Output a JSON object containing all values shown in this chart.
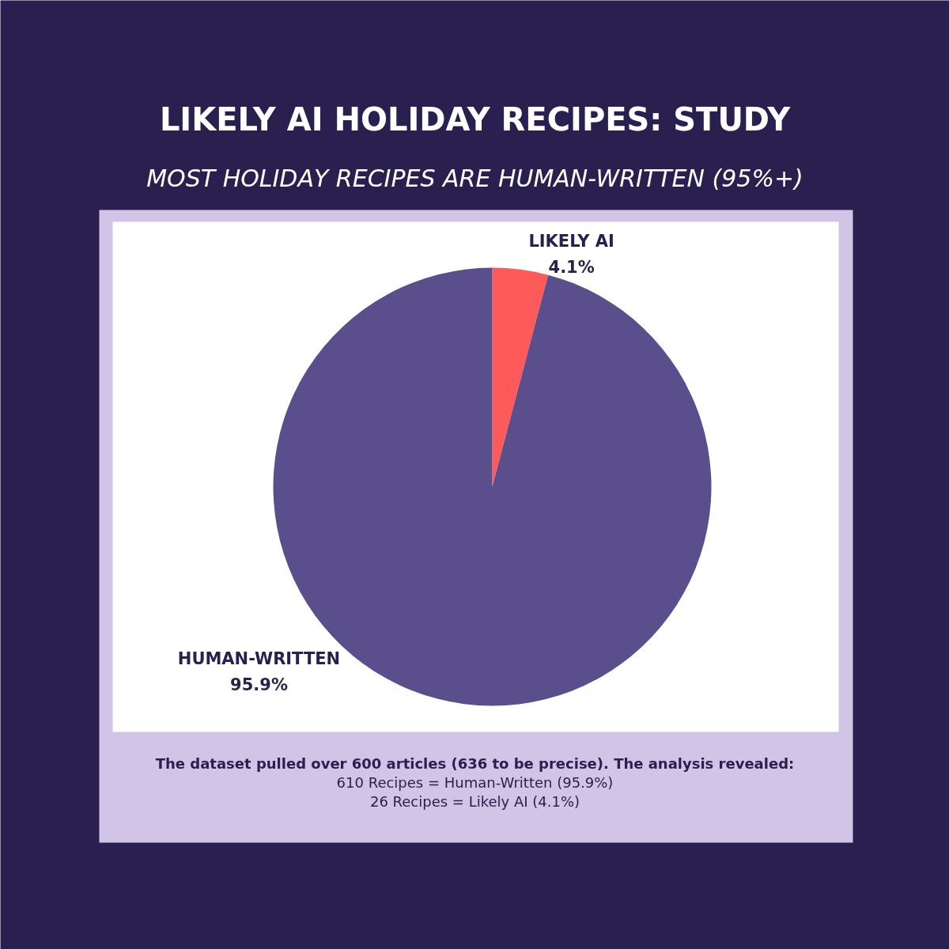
{
  "chart_data": {
    "type": "pie",
    "title": "LIKELY AI HOLIDAY RECIPES: STUDY",
    "subtitle": "MOST HOLIDAY RECIPES ARE HUMAN-WRITTEN (95%+)",
    "categories": [
      "LIKELY AI",
      "HUMAN-WRITTEN"
    ],
    "values": [
      4.1,
      95.9
    ],
    "colors": [
      "#ff5a5a",
      "#5a4f8c"
    ],
    "value_labels": [
      "4.1%",
      "95.9%"
    ],
    "annotations": [
      "The dataset pulled over 600 articles (636 to be precise). The analysis revealed:",
      "610 Recipes = Human-Written (95.9%)",
      "26 Recipes = Likely AI (4.1%)"
    ]
  }
}
